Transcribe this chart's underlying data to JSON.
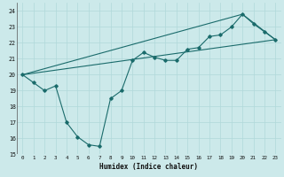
{
  "xlabel": "Humidex (Indice chaleur)",
  "xlim": [
    -0.5,
    23.5
  ],
  "ylim": [
    15,
    24.5
  ],
  "yticks": [
    15,
    16,
    17,
    18,
    19,
    20,
    21,
    22,
    23,
    24
  ],
  "xticks": [
    0,
    1,
    2,
    3,
    4,
    5,
    6,
    7,
    8,
    9,
    10,
    11,
    12,
    13,
    14,
    15,
    16,
    17,
    18,
    19,
    20,
    21,
    22,
    23
  ],
  "bg_color": "#cce9ea",
  "line_color": "#1a6b6b",
  "grid_color": "#b0d8da",
  "series1_x": [
    0,
    1,
    2,
    3,
    4,
    5,
    6,
    7,
    8,
    9,
    10,
    11,
    12,
    13,
    14,
    15,
    16,
    17,
    18,
    19,
    20,
    21,
    22,
    23
  ],
  "series1_y": [
    20.0,
    19.5,
    19.0,
    19.3,
    17.0,
    16.1,
    15.6,
    15.5,
    18.5,
    19.0,
    20.9,
    21.4,
    21.1,
    20.9,
    20.9,
    21.6,
    21.7,
    22.4,
    22.5,
    23.0,
    23.8,
    23.2,
    22.7,
    22.2
  ],
  "series2_x": [
    0,
    23
  ],
  "series2_y": [
    20.0,
    22.2
  ],
  "series3_x": [
    0,
    20,
    23
  ],
  "series3_y": [
    20.0,
    23.8,
    22.2
  ]
}
